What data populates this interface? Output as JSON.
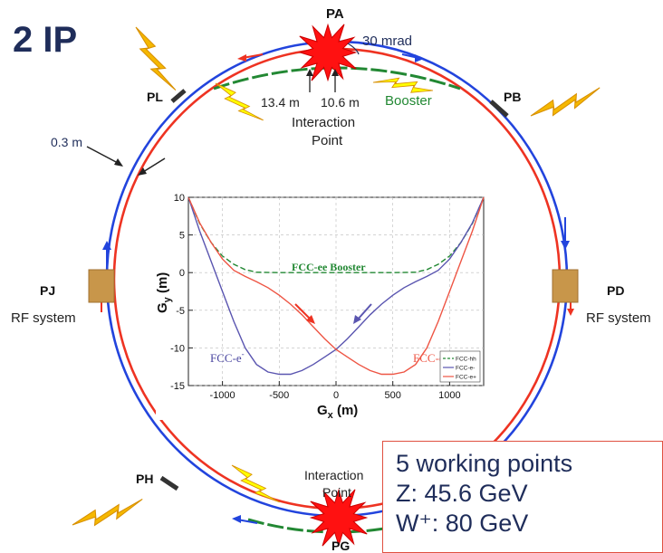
{
  "title": "2 IP",
  "ring": {
    "points": {
      "pa": "PA",
      "pb": "PB",
      "pd": "PD",
      "pg": "PG",
      "ph": "PH",
      "pj": "PJ",
      "pl": "PL"
    },
    "crossing_angle": "30 mrad",
    "dist_left": "13.4 m",
    "dist_right": "10.6 m",
    "booster_label": "Booster",
    "ip_top": [
      "Interaction",
      "Point"
    ],
    "ip_bottom": [
      "Interaction",
      "Point"
    ],
    "separation": "0.3 m",
    "rf_left": "RF system",
    "rf_right": "RF system",
    "colors": {
      "electron": "#2244dd",
      "positron": "#ee3322",
      "booster": "#228833",
      "rf": "#c8964a",
      "lightning": "#f5b800",
      "ip_burst": "#ff1111",
      "ip_lightning": "#ffff00"
    }
  },
  "chart_data": {
    "type": "line",
    "xlabel": "G",
    "xlabel_sub": "x",
    "xlabel_unit": " (m)",
    "ylabel": "G",
    "ylabel_sub": "y",
    "ylabel_unit": " (m)",
    "xlim": [
      -1300,
      1300
    ],
    "ylim": [
      -15,
      10
    ],
    "x_ticks": [
      "-1000",
      "-500",
      "0",
      "500",
      "1000"
    ],
    "x_tick_values": [
      -1000,
      -500,
      0,
      500,
      1000
    ],
    "y_ticks": [
      "10",
      "5",
      "0",
      "-5",
      "-10",
      "-15"
    ],
    "y_tick_values": [
      10,
      5,
      0,
      -5,
      -10,
      -15
    ],
    "grid": true,
    "annotations": {
      "booster": "FCC-ee Booster",
      "e_minus": "FCC-e",
      "e_minus_sup": "-",
      "e_plus": "FCC-e",
      "e_plus_sup": "+"
    },
    "legend": [
      "FCC-hh",
      "FCC-e-",
      "FCC-e+"
    ],
    "legend_position": "lower-right",
    "series": [
      {
        "name": "FCC-hh",
        "color": "#228833",
        "dashed": true,
        "x": [
          -1300,
          -1200,
          -1100,
          -1000,
          -900,
          -800,
          -700,
          -500,
          0,
          500,
          700,
          800,
          900,
          1000,
          1100,
          1200,
          1300
        ],
        "y": [
          10,
          6.5,
          4.0,
          2.2,
          1.1,
          0.4,
          0.05,
          0,
          0,
          0,
          0.05,
          0.4,
          1.1,
          2.2,
          4.0,
          6.5,
          10
        ]
      },
      {
        "name": "FCC-e-",
        "color": "#5a55b0",
        "dashed": false,
        "x": [
          -1300,
          -1200,
          -1100,
          -1000,
          -900,
          -800,
          -700,
          -600,
          -500,
          -400,
          -300,
          -200,
          -100,
          0,
          100,
          200,
          300,
          400,
          500,
          600,
          700,
          800,
          900,
          1000,
          1100,
          1200,
          1300
        ],
        "y": [
          10,
          5.5,
          1.5,
          -2.5,
          -6.5,
          -10.0,
          -12.2,
          -13.2,
          -13.5,
          -13.5,
          -13.0,
          -12.2,
          -11.2,
          -10.2,
          -8.8,
          -7.2,
          -5.6,
          -4.2,
          -3.0,
          -2.0,
          -1.2,
          -0.5,
          0.3,
          1.8,
          4.0,
          6.6,
          10
        ]
      },
      {
        "name": "FCC-e+",
        "color": "#ee5544",
        "dashed": false,
        "x": [
          -1300,
          -1200,
          -1100,
          -1000,
          -900,
          -800,
          -700,
          -600,
          -500,
          -400,
          -300,
          -200,
          -100,
          0,
          100,
          200,
          300,
          400,
          500,
          600,
          700,
          800,
          900,
          1000,
          1100,
          1200,
          1300
        ],
        "y": [
          10,
          6.6,
          4.0,
          1.8,
          0.3,
          -0.5,
          -1.2,
          -2.0,
          -3.0,
          -4.2,
          -5.6,
          -7.2,
          -8.8,
          -10.2,
          -11.2,
          -12.2,
          -13.0,
          -13.5,
          -13.5,
          -13.2,
          -12.2,
          -10.0,
          -6.5,
          -2.5,
          1.5,
          5.5,
          10
        ]
      }
    ]
  },
  "info": {
    "lines": [
      "5 working points",
      "Z: 45.6 GeV",
      "W⁺: 80 GeV"
    ]
  }
}
